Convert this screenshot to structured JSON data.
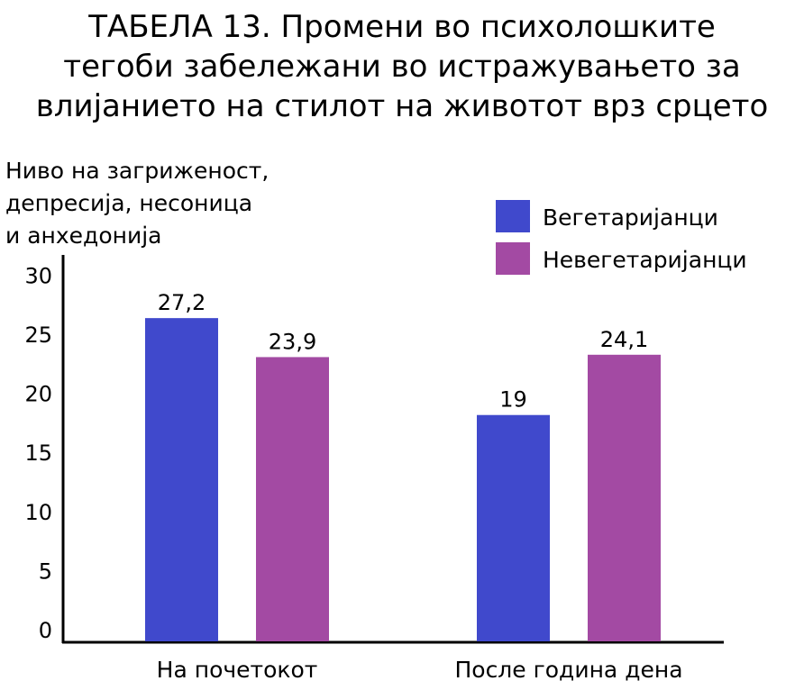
{
  "chart_data": {
    "type": "bar",
    "title_lines": [
      "ТАБЕЛА 13. Промени во психолошките",
      "тегоби забележани во истражувањето за",
      "влијанието на стилот на животот врз срцето"
    ],
    "ylabel_lines": [
      "Ниво на загриженост,",
      "депресија, несоница",
      "и анхедонија"
    ],
    "xlabel": "",
    "categories": [
      "На почетокот",
      "После година дена"
    ],
    "series": [
      {
        "name": "Вегетаријанци",
        "color": "#4049cc",
        "values": [
          27.2,
          19
        ],
        "labels": [
          "27,2",
          "19"
        ]
      },
      {
        "name": "Невегетаријанци",
        "color": "#a34aa3",
        "values": [
          23.9,
          24.1
        ],
        "labels": [
          "23,9",
          "24,1"
        ]
      }
    ],
    "yticks": [
      0,
      5,
      10,
      15,
      20,
      25,
      30
    ],
    "ylim": [
      0,
      30
    ],
    "grid": false,
    "legend": "top-right"
  }
}
